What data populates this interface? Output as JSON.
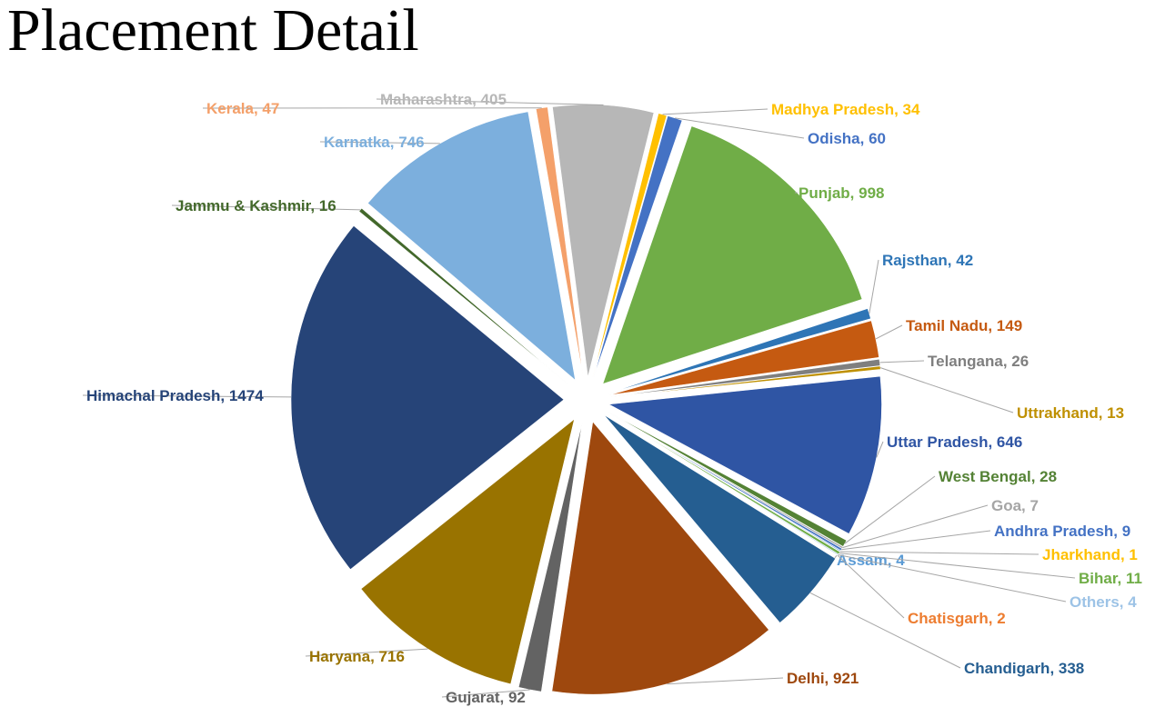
{
  "title": "Placement Detail",
  "chart_data": {
    "type": "pie",
    "title": "Placement Detail",
    "legend": "none (data labels beside slices)",
    "slices": [
      {
        "label": "Madhya Pradesh",
        "value": 34,
        "color": "#ffc000",
        "text": "Madhya Pradesh, 34"
      },
      {
        "label": "Odisha",
        "value": 60,
        "color": "#4472c4",
        "text": "Odisha, 60"
      },
      {
        "label": "Punjab",
        "value": 998,
        "color": "#70ad47",
        "text": "Punjab, 998"
      },
      {
        "label": "Rajsthan",
        "value": 42,
        "color": "#2e75b6",
        "text": "Rajsthan, 42"
      },
      {
        "label": "Tamil Nadu",
        "value": 149,
        "color": "#c55a11",
        "text": "Tamil Nadu, 149"
      },
      {
        "label": "Telangana",
        "value": 26,
        "color": "#7f7f7f",
        "text": "Telangana, 26"
      },
      {
        "label": "Uttrakhand",
        "value": 13,
        "color": "#bf9000",
        "text": "Uttrakhand, 13"
      },
      {
        "label": "Uttar Pradesh",
        "value": 646,
        "color": "#2f55a4",
        "text": "Uttar Pradesh, 646"
      },
      {
        "label": "West Bengal",
        "value": 28,
        "color": "#548235",
        "text": "West Bengal, 28"
      },
      {
        "label": "Goa",
        "value": 7,
        "color": "#a5a5a5",
        "text": "Goa, 7"
      },
      {
        "label": "Andhra Pradesh",
        "value": 9,
        "color": "#4472c4",
        "text": "Andhra Pradesh, 9"
      },
      {
        "label": "Assam",
        "value": 4,
        "color": "#5b9bd5",
        "text": "Assam, 4"
      },
      {
        "label": "Jharkhand",
        "value": 1,
        "color": "#ffc000",
        "text": "Jharkhand, 1"
      },
      {
        "label": "Bihar",
        "value": 11,
        "color": "#70ad47",
        "text": "Bihar, 11"
      },
      {
        "label": "Others",
        "value": 4,
        "color": "#9dc3e6",
        "text": "Others, 4"
      },
      {
        "label": "Chatisgarh",
        "value": 2,
        "color": "#ed7d31",
        "text": "Chatisgarh, 2"
      },
      {
        "label": "Chandigarh",
        "value": 338,
        "color": "#255e91",
        "text": "Chandigarh, 338"
      },
      {
        "label": "Delhi",
        "value": 921,
        "color": "#9e480e",
        "text": "Delhi, 921"
      },
      {
        "label": "Gujarat",
        "value": 92,
        "color": "#636363",
        "text": "Gujarat, 92"
      },
      {
        "label": "Haryana",
        "value": 716,
        "color": "#997300",
        "text": "Haryana, 716"
      },
      {
        "label": "Himachal Pradesh",
        "value": 1474,
        "color": "#264478",
        "text": "Himachal Pradesh, 1474"
      },
      {
        "label": "Jammu & Kashmir",
        "value": 16,
        "color": "#43682b",
        "text": "Jammu & Kashmir, 16"
      },
      {
        "label": "Karnatka",
        "value": 746,
        "color": "#7cafdd",
        "text": "Karnatka, 746"
      },
      {
        "label": "Kerala",
        "value": 47,
        "color": "#f4a06a",
        "text": "Kerala, 47"
      },
      {
        "label": "Maharashtra",
        "value": 405,
        "color": "#b7b7b7",
        "text": "Maharashtra, 405"
      }
    ]
  }
}
